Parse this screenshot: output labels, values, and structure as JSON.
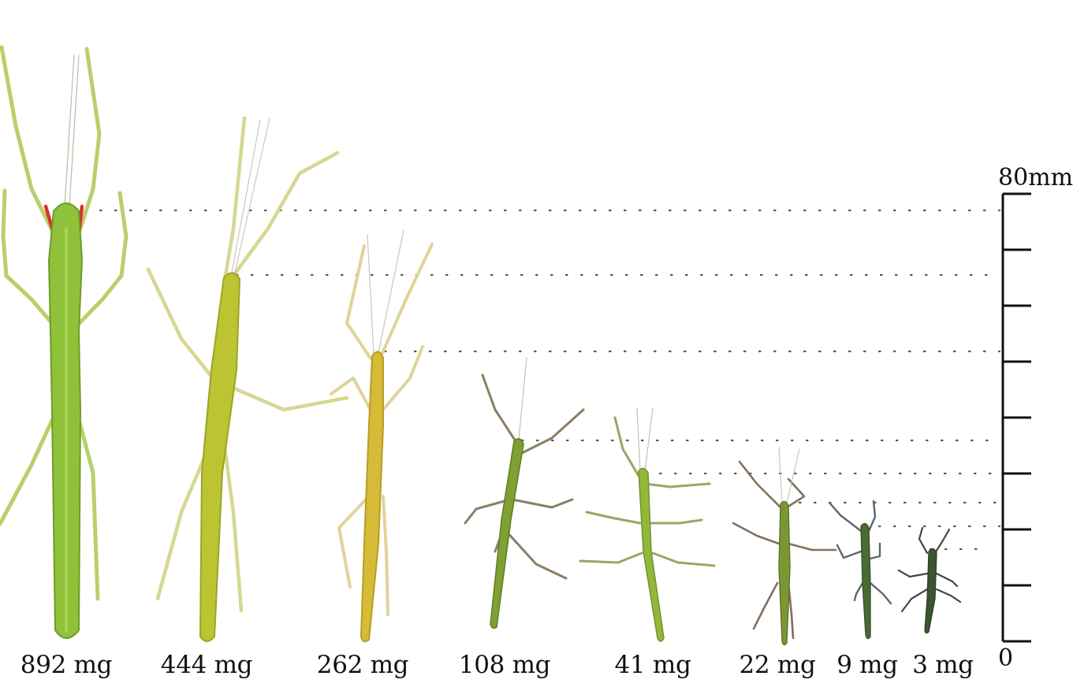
{
  "figure": {
    "scale": {
      "top_label": "80mm",
      "bottom_label": "0"
    },
    "specimens": [
      {
        "mass_label": "892 mg",
        "body_color": "#8fc23a",
        "leg_color": "#b9cf6a",
        "accent": "#d8322e"
      },
      {
        "mass_label": "444 mg",
        "body_color": "#bcc431",
        "leg_color": "#d7d792"
      },
      {
        "mass_label": "262 mg",
        "body_color": "#d6bb39",
        "leg_color": "#e1d39a"
      },
      {
        "mass_label": "108 mg",
        "body_color": "#7fa034",
        "leg_color": "#8a7e64"
      },
      {
        "mass_label": "41 mg",
        "body_color": "#94b73a",
        "leg_color": "#9aa567"
      },
      {
        "mass_label": "22 mg",
        "body_color": "#7d9634",
        "leg_color": "#82705c"
      },
      {
        "mass_label": "9 mg",
        "body_color": "#4b6a32",
        "leg_color": "#5e6470"
      },
      {
        "mass_label": "3 mg",
        "body_color": "#3b5530",
        "leg_color": "#3e4654"
      }
    ]
  }
}
